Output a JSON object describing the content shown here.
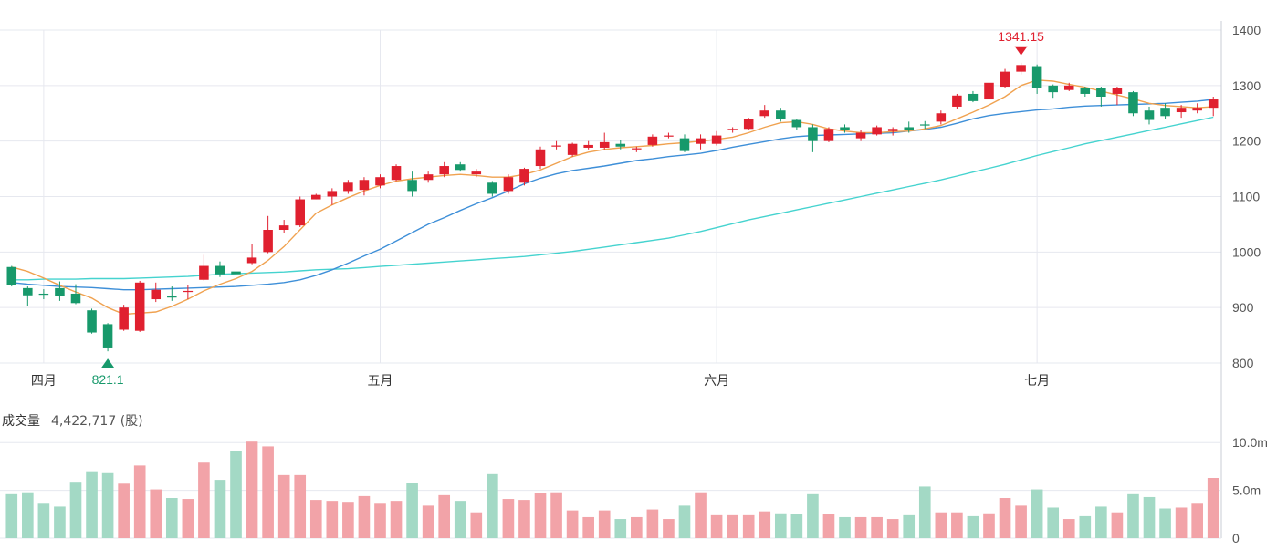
{
  "chart_data": {
    "type": "candlestick",
    "price_axis": {
      "ylim": [
        800,
        1400
      ],
      "ticks": [
        "800",
        "900",
        "1000",
        "1100",
        "1200",
        "1300",
        "1400"
      ]
    },
    "month_labels": [
      {
        "label": "四月",
        "index": 2
      },
      {
        "label": "五月",
        "index": 23
      },
      {
        "label": "六月",
        "index": 44
      },
      {
        "label": "七月",
        "index": 64
      }
    ],
    "high_marker": {
      "label": "1341.15",
      "index": 63,
      "value": 1341.15
    },
    "low_marker": {
      "label": "821.1",
      "index": 6,
      "value": 821.1
    },
    "ohlc": [
      [
        973,
        940,
        975,
        938
      ],
      [
        935,
        922,
        938,
        902
      ],
      [
        925,
        923,
        933,
        915
      ],
      [
        935,
        920,
        947,
        912
      ],
      [
        925,
        908,
        942,
        906
      ],
      [
        895,
        855,
        898,
        853
      ],
      [
        870,
        828,
        872,
        821.1
      ],
      [
        860,
        900,
        905,
        858
      ],
      [
        858,
        945,
        948,
        856
      ],
      [
        915,
        932,
        945,
        910
      ],
      [
        920,
        918,
        938,
        912
      ],
      [
        928,
        930,
        940,
        915
      ],
      [
        950,
        975,
        995,
        948
      ],
      [
        975,
        960,
        983,
        955
      ],
      [
        965,
        960,
        975,
        955
      ],
      [
        980,
        990,
        1015,
        978
      ],
      [
        1000,
        1040,
        1065,
        998
      ],
      [
        1040,
        1048,
        1058,
        1035
      ],
      [
        1048,
        1095,
        1100,
        1045
      ],
      [
        1095,
        1103,
        1105,
        1095
      ],
      [
        1100,
        1110,
        1115,
        1085
      ],
      [
        1110,
        1125,
        1130,
        1105
      ],
      [
        1112,
        1130,
        1135,
        1102
      ],
      [
        1120,
        1135,
        1140,
        1115
      ],
      [
        1130,
        1155,
        1158,
        1128
      ],
      [
        1130,
        1110,
        1145,
        1100
      ],
      [
        1130,
        1140,
        1145,
        1125
      ],
      [
        1140,
        1155,
        1162,
        1135
      ],
      [
        1158,
        1148,
        1162,
        1145
      ],
      [
        1140,
        1145,
        1150,
        1135
      ],
      [
        1125,
        1105,
        1128,
        1100
      ],
      [
        1110,
        1135,
        1140,
        1105
      ],
      [
        1125,
        1150,
        1152,
        1120
      ],
      [
        1155,
        1185,
        1190,
        1150
      ],
      [
        1190,
        1192,
        1200,
        1185
      ],
      [
        1175,
        1195,
        1197,
        1172
      ],
      [
        1188,
        1193,
        1200,
        1185
      ],
      [
        1188,
        1198,
        1215,
        1185
      ],
      [
        1195,
        1190,
        1202,
        1185
      ],
      [
        1185,
        1187,
        1190,
        1180
      ],
      [
        1193,
        1208,
        1212,
        1190
      ],
      [
        1208,
        1210,
        1215,
        1205
      ],
      [
        1205,
        1182,
        1212,
        1180
      ],
      [
        1195,
        1205,
        1212,
        1185
      ],
      [
        1195,
        1210,
        1218,
        1192
      ],
      [
        1220,
        1222,
        1225,
        1215
      ],
      [
        1222,
        1240,
        1242,
        1220
      ],
      [
        1245,
        1255,
        1265,
        1242
      ],
      [
        1255,
        1240,
        1260,
        1235
      ],
      [
        1238,
        1225,
        1240,
        1220
      ],
      [
        1225,
        1200,
        1230,
        1180
      ],
      [
        1200,
        1222,
        1225,
        1198
      ],
      [
        1225,
        1220,
        1230,
        1215
      ],
      [
        1205,
        1215,
        1220,
        1200
      ],
      [
        1212,
        1225,
        1228,
        1210
      ],
      [
        1218,
        1222,
        1225,
        1210
      ],
      [
        1225,
        1220,
        1235,
        1215
      ],
      [
        1230,
        1228,
        1236,
        1222
      ],
      [
        1235,
        1250,
        1255,
        1230
      ],
      [
        1262,
        1282,
        1285,
        1258
      ],
      [
        1285,
        1272,
        1290,
        1270
      ],
      [
        1275,
        1305,
        1310,
        1272
      ],
      [
        1298,
        1325,
        1330,
        1295
      ],
      [
        1325,
        1337,
        1341.15,
        1320
      ],
      [
        1335,
        1295,
        1338,
        1285
      ],
      [
        1300,
        1288,
        1302,
        1278
      ],
      [
        1292,
        1300,
        1305,
        1290
      ],
      [
        1295,
        1285,
        1298,
        1280
      ],
      [
        1295,
        1280,
        1298,
        1262
      ],
      [
        1285,
        1295,
        1298,
        1265
      ],
      [
        1288,
        1250,
        1290,
        1245
      ],
      [
        1255,
        1238,
        1262,
        1230
      ],
      [
        1260,
        1245,
        1268,
        1240
      ],
      [
        1252,
        1260,
        1265,
        1242
      ],
      [
        1255,
        1260,
        1268,
        1250
      ],
      [
        1260,
        1275,
        1280,
        1245
      ]
    ],
    "ma_short": [
      973,
      965,
      953,
      940,
      928,
      917,
      900,
      888,
      890,
      892,
      902,
      915,
      930,
      942,
      952,
      965,
      985,
      1010,
      1040,
      1070,
      1085,
      1098,
      1110,
      1120,
      1128,
      1132,
      1135,
      1138,
      1140,
      1138,
      1135,
      1135,
      1140,
      1148,
      1160,
      1172,
      1180,
      1185,
      1188,
      1190,
      1192,
      1195,
      1197,
      1200,
      1203,
      1207,
      1215,
      1225,
      1233,
      1235,
      1230,
      1222,
      1218,
      1215,
      1215,
      1217,
      1218,
      1222,
      1228,
      1240,
      1252,
      1265,
      1280,
      1300,
      1310,
      1308,
      1302,
      1297,
      1290,
      1283,
      1276,
      1268,
      1264,
      1262,
      1260,
      1262
    ],
    "ma_medium": [
      945,
      942,
      940,
      938,
      937,
      936,
      934,
      932,
      932,
      933,
      934,
      935,
      936,
      937,
      938,
      940,
      942,
      945,
      950,
      958,
      968,
      980,
      993,
      1005,
      1020,
      1035,
      1050,
      1062,
      1075,
      1087,
      1098,
      1110,
      1123,
      1133,
      1141,
      1147,
      1151,
      1155,
      1160,
      1165,
      1168,
      1172,
      1175,
      1178,
      1183,
      1189,
      1194,
      1199,
      1204,
      1208,
      1210,
      1211,
      1212,
      1213,
      1214,
      1215,
      1218,
      1221,
      1225,
      1232,
      1240,
      1246,
      1250,
      1253,
      1256,
      1258,
      1261,
      1263,
      1264,
      1265,
      1266,
      1267,
      1268,
      1270,
      1272,
      1275
    ],
    "ma_long": [
      950,
      950,
      951,
      951,
      951,
      952,
      952,
      952,
      953,
      954,
      955,
      956,
      958,
      960,
      961,
      962,
      963,
      964,
      966,
      968,
      969,
      970,
      972,
      974,
      976,
      978,
      980,
      982,
      984,
      986,
      988,
      990,
      992,
      995,
      998,
      1001,
      1005,
      1009,
      1013,
      1017,
      1021,
      1025,
      1031,
      1037,
      1044,
      1051,
      1058,
      1064,
      1070,
      1076,
      1082,
      1088,
      1094,
      1100,
      1106,
      1112,
      1118,
      1124,
      1130,
      1137,
      1144,
      1151,
      1158,
      1166,
      1174,
      1181,
      1188,
      1195,
      1201,
      1207,
      1213,
      1219,
      1225,
      1231,
      1237,
      1243
    ],
    "volume": {
      "title": "成交量",
      "total_label": "4,422,717 (股)",
      "ylim": [
        0,
        10.5
      ],
      "ticks": [
        {
          "value": 0,
          "label": "0"
        },
        {
          "value": 5,
          "label": "5.0m"
        },
        {
          "value": 10,
          "label": "10.0m"
        }
      ],
      "values": [
        4.6,
        4.8,
        3.6,
        3.3,
        5.9,
        7.0,
        6.8,
        5.7,
        7.6,
        5.1,
        4.2,
        4.1,
        7.9,
        6.1,
        9.1,
        10.1,
        9.6,
        6.6,
        6.6,
        4.0,
        3.9,
        3.8,
        4.4,
        3.6,
        3.9,
        5.8,
        3.4,
        4.5,
        3.9,
        2.7,
        6.7,
        4.1,
        4.0,
        4.7,
        4.8,
        2.9,
        2.2,
        2.9,
        2.0,
        2.2,
        3.0,
        2.0,
        3.4,
        4.8,
        2.4,
        2.4,
        2.4,
        2.8,
        2.6,
        2.5,
        4.6,
        2.5,
        2.2,
        2.2,
        2.2,
        2.0,
        2.4,
        5.4,
        2.7,
        2.7,
        2.3,
        2.6,
        4.2,
        3.4,
        5.1,
        3.2,
        2.0,
        2.3,
        3.3,
        2.7,
        4.6,
        4.3,
        3.1,
        3.2,
        3.6,
        6.3
      ]
    },
    "colors": {
      "up": "#e0202f",
      "down": "#17996b",
      "vol_up": "#f2a3a8",
      "vol_down": "#a3d9c5",
      "ma_short": "#f0a250",
      "ma_medium": "#3e8fd8",
      "ma_long": "#45d3cf",
      "grid": "#e6e8ef",
      "axis_text": "#555555",
      "high_marker": "#e0202f",
      "low_marker": "#17996b"
    }
  }
}
